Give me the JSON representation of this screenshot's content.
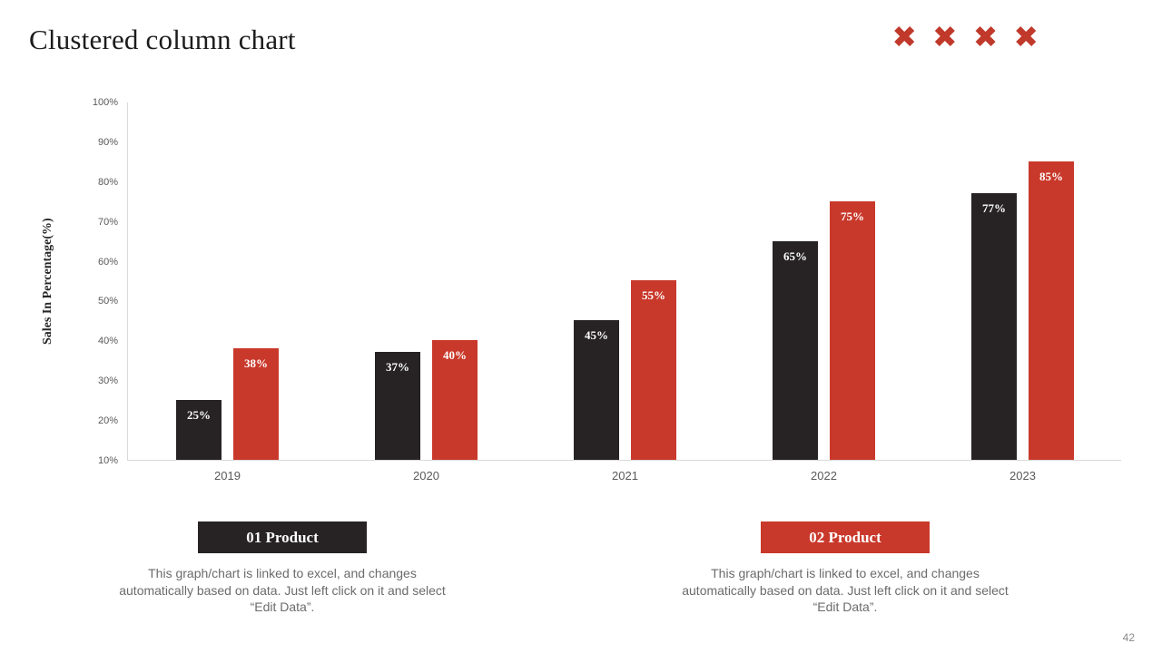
{
  "slide": {
    "title": "Clustered column chart",
    "page_number": "42"
  },
  "icons": {
    "x_mark_glyph": "✖",
    "x_mark_color": "#c0392b",
    "x_mark_count": 4
  },
  "chart_data": {
    "type": "bar",
    "title": "",
    "categories": [
      "2019",
      "2020",
      "2021",
      "2022",
      "2023"
    ],
    "series": [
      {
        "name": "01 Product",
        "color": "#272324",
        "values": [
          25,
          37,
          45,
          65,
          77
        ]
      },
      {
        "name": "02 Product",
        "color": "#c9392b",
        "values": [
          38,
          40,
          55,
          75,
          85
        ]
      }
    ],
    "xlabel": "",
    "ylabel": "Sales In Percentage(%)",
    "ylim": [
      10,
      100
    ],
    "ytick_step": 10,
    "ytick_suffix": "%",
    "value_label_suffix": "%",
    "grid": false,
    "legend_position": "below"
  },
  "legend": {
    "items": [
      {
        "label": "01 Product",
        "color": "#272324",
        "description": "This graph/chart is linked to excel, and changes automatically based on data. Just left click on it and select “Edit Data”."
      },
      {
        "label": "02 Product",
        "color": "#c9392b",
        "description": "This graph/chart is linked to excel, and changes automatically based on data. Just left click on it and select “Edit Data”."
      }
    ]
  },
  "colors": {
    "series1": "#272324",
    "series2": "#c9392b",
    "axis_line": "#d9d9d9",
    "tick_text": "#595959",
    "description_text": "#6b6b6b"
  }
}
